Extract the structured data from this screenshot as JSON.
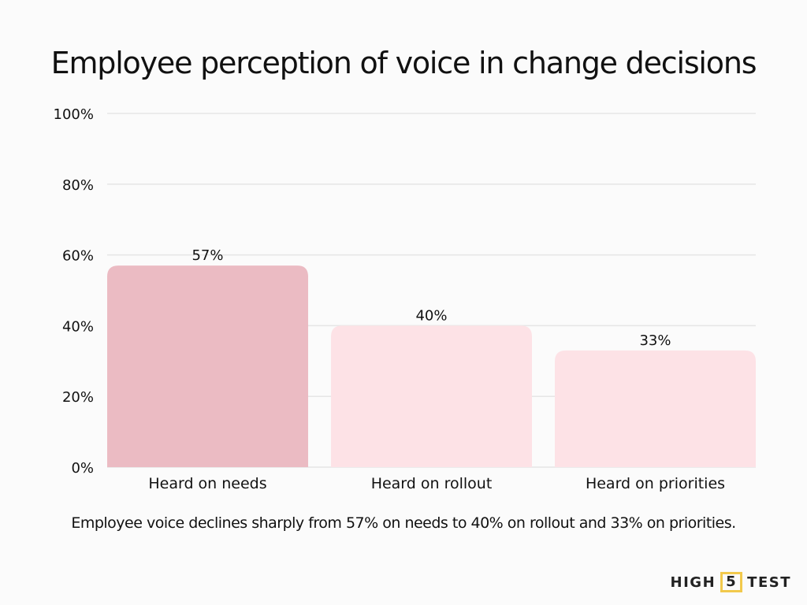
{
  "chart_data": {
    "type": "bar",
    "title": "Employee perception of voice in change decisions",
    "categories": [
      "Heard on needs",
      "Heard on rollout",
      "Heard on priorities"
    ],
    "values": [
      57,
      40,
      33
    ],
    "data_labels": [
      "57%",
      "40%",
      "33%"
    ],
    "ylim": [
      0,
      100
    ],
    "yticks": [
      0,
      20,
      40,
      60,
      80,
      100
    ],
    "ytick_labels": [
      "0%",
      "20%",
      "40%",
      "60%",
      "80%",
      "100%"
    ],
    "grid": true,
    "colors": [
      "#ebbbc3",
      "#fde2e6",
      "#fde2e6"
    ],
    "caption": "Employee voice declines sharply from 57% on needs to 40% on rollout and 33% on priorities."
  },
  "logo": {
    "left": "HIGH",
    "middle": "5",
    "right": "TEST",
    "accent": "#f2c94c"
  }
}
